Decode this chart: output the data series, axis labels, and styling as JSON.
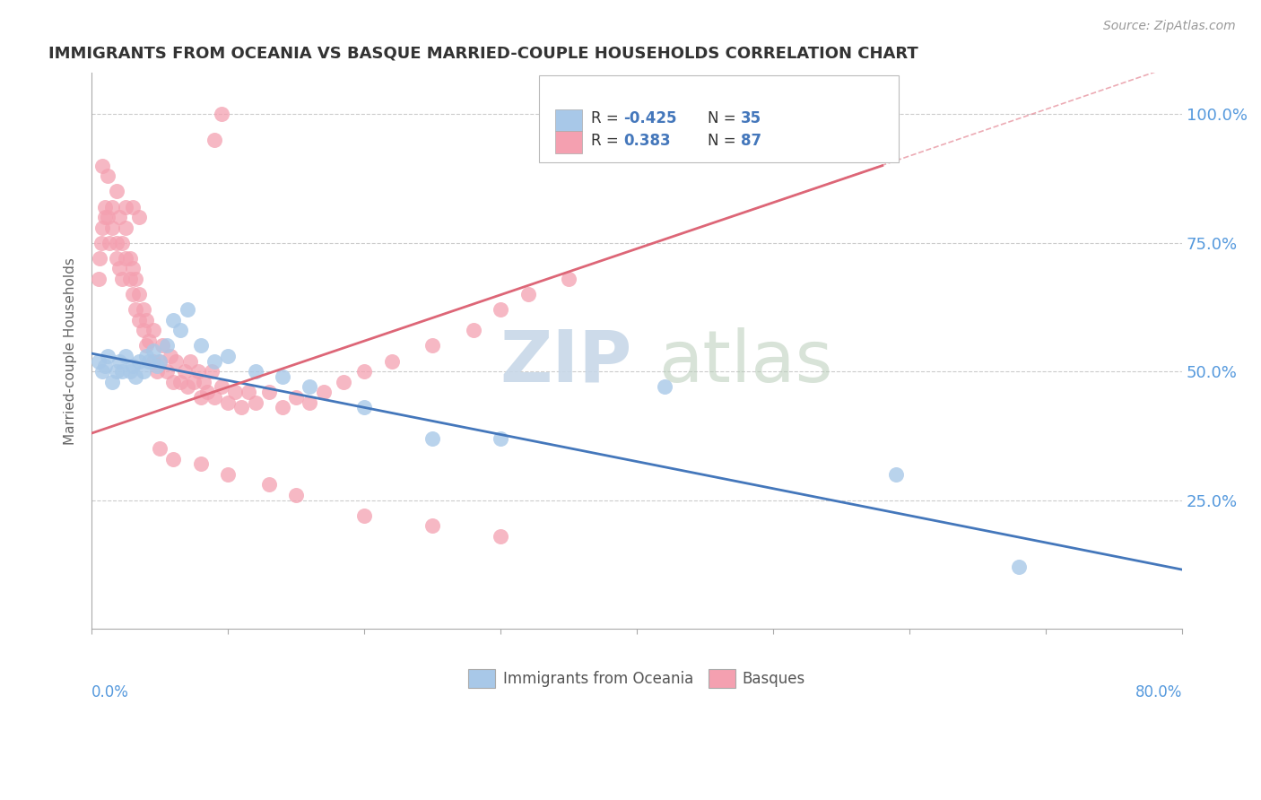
{
  "title": "IMMIGRANTS FROM OCEANIA VS BASQUE MARRIED-COUPLE HOUSEHOLDS CORRELATION CHART",
  "source": "Source: ZipAtlas.com",
  "ylabel": "Married-couple Households",
  "yticks": [
    0.0,
    0.25,
    0.5,
    0.75,
    1.0
  ],
  "ytick_labels": [
    "",
    "25.0%",
    "50.0%",
    "75.0%",
    "100.0%"
  ],
  "xlim": [
    0.0,
    0.8
  ],
  "ylim": [
    0.0,
    1.08
  ],
  "legend_blue_r": "-0.425",
  "legend_blue_n": "35",
  "legend_pink_r": "0.383",
  "legend_pink_n": "87",
  "blue_color": "#A8C8E8",
  "pink_color": "#F4A0B0",
  "blue_line_color": "#4477BB",
  "pink_line_color": "#DD6677",
  "blue_scatter_x": [
    0.005,
    0.008,
    0.01,
    0.012,
    0.015,
    0.018,
    0.02,
    0.022,
    0.025,
    0.028,
    0.03,
    0.032,
    0.035,
    0.038,
    0.04,
    0.042,
    0.045,
    0.048,
    0.05,
    0.055,
    0.06,
    0.065,
    0.07,
    0.08,
    0.09,
    0.1,
    0.12,
    0.14,
    0.16,
    0.2,
    0.25,
    0.3,
    0.42,
    0.59,
    0.68
  ],
  "blue_scatter_y": [
    0.52,
    0.5,
    0.51,
    0.53,
    0.48,
    0.5,
    0.52,
    0.5,
    0.53,
    0.5,
    0.51,
    0.49,
    0.52,
    0.5,
    0.53,
    0.52,
    0.54,
    0.51,
    0.52,
    0.55,
    0.6,
    0.58,
    0.62,
    0.55,
    0.52,
    0.53,
    0.5,
    0.49,
    0.47,
    0.43,
    0.37,
    0.37,
    0.47,
    0.3,
    0.12
  ],
  "pink_scatter_x": [
    0.005,
    0.006,
    0.007,
    0.008,
    0.01,
    0.01,
    0.012,
    0.013,
    0.015,
    0.015,
    0.018,
    0.018,
    0.02,
    0.02,
    0.022,
    0.022,
    0.025,
    0.025,
    0.028,
    0.028,
    0.03,
    0.03,
    0.032,
    0.032,
    0.035,
    0.035,
    0.038,
    0.038,
    0.04,
    0.04,
    0.042,
    0.045,
    0.045,
    0.048,
    0.05,
    0.052,
    0.055,
    0.058,
    0.06,
    0.062,
    0.065,
    0.068,
    0.07,
    0.072,
    0.075,
    0.078,
    0.08,
    0.082,
    0.085,
    0.088,
    0.09,
    0.095,
    0.1,
    0.105,
    0.11,
    0.115,
    0.12,
    0.13,
    0.14,
    0.15,
    0.16,
    0.17,
    0.185,
    0.2,
    0.22,
    0.25,
    0.28,
    0.3,
    0.32,
    0.35,
    0.008,
    0.012,
    0.018,
    0.025,
    0.03,
    0.035,
    0.05,
    0.06,
    0.08,
    0.1,
    0.13,
    0.15,
    0.2,
    0.25,
    0.3,
    0.095,
    0.09
  ],
  "pink_scatter_y": [
    0.68,
    0.72,
    0.75,
    0.78,
    0.8,
    0.82,
    0.8,
    0.75,
    0.78,
    0.82,
    0.72,
    0.75,
    0.7,
    0.8,
    0.68,
    0.75,
    0.72,
    0.78,
    0.68,
    0.72,
    0.65,
    0.7,
    0.62,
    0.68,
    0.6,
    0.65,
    0.58,
    0.62,
    0.55,
    0.6,
    0.56,
    0.52,
    0.58,
    0.5,
    0.52,
    0.55,
    0.5,
    0.53,
    0.48,
    0.52,
    0.48,
    0.5,
    0.47,
    0.52,
    0.48,
    0.5,
    0.45,
    0.48,
    0.46,
    0.5,
    0.45,
    0.47,
    0.44,
    0.46,
    0.43,
    0.46,
    0.44,
    0.46,
    0.43,
    0.45,
    0.44,
    0.46,
    0.48,
    0.5,
    0.52,
    0.55,
    0.58,
    0.62,
    0.65,
    0.68,
    0.9,
    0.88,
    0.85,
    0.82,
    0.82,
    0.8,
    0.35,
    0.33,
    0.32,
    0.3,
    0.28,
    0.26,
    0.22,
    0.2,
    0.18,
    1.0,
    0.95
  ],
  "blue_line_x0": 0.0,
  "blue_line_y0": 0.535,
  "blue_line_x1": 0.8,
  "blue_line_y1": 0.115,
  "pink_line_solid_x0": 0.0,
  "pink_line_solid_y0": 0.38,
  "pink_line_solid_x1": 0.58,
  "pink_line_solid_y1": 0.9,
  "pink_line_dash_x0": 0.48,
  "pink_line_dash_y0": 0.81,
  "pink_line_dash_x1": 0.8,
  "pink_line_dash_y1": 1.1
}
